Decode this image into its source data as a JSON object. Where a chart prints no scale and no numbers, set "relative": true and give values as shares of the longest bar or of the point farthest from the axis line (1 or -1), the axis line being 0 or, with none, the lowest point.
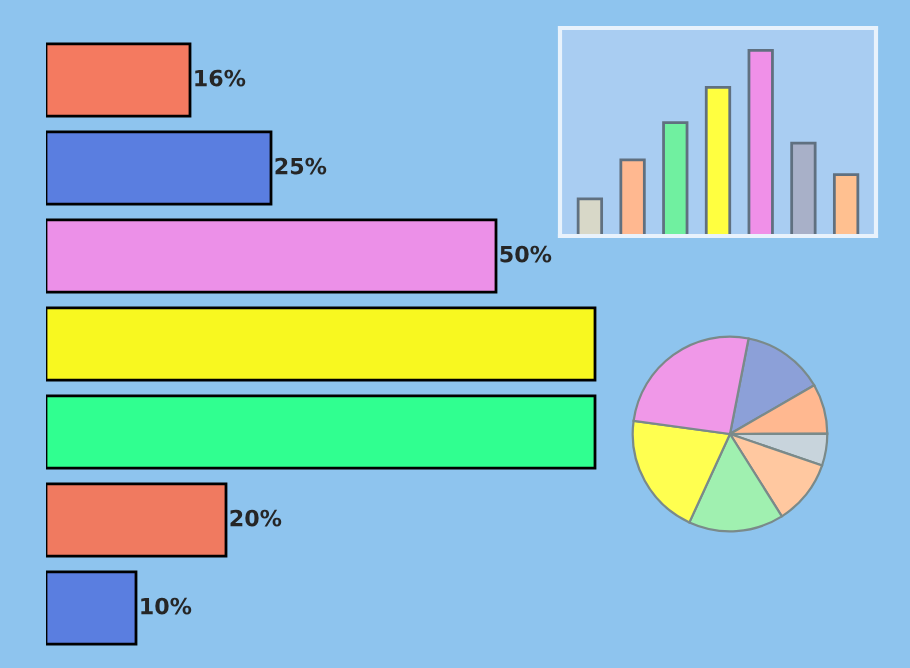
{
  "chart_data": [
    {
      "type": "bar",
      "orientation": "horizontal",
      "categories": [
        null,
        null,
        null,
        null,
        null,
        null,
        null
      ],
      "values": [
        16,
        25,
        50,
        61,
        61,
        20,
        10
      ],
      "colors": [
        "#f47a60",
        "#5a7ee0",
        "#ec90e8",
        "#f8f820",
        "#30ff90",
        "#f07a60",
        "#5a7ee0"
      ],
      "value_labels": [
        "16%",
        "25%",
        "50%",
        null,
        null,
        "20%",
        "10%"
      ],
      "xlim": [
        0,
        96
      ]
    },
    {
      "type": "bar",
      "relative": true,
      "categories": [
        null,
        null,
        null,
        null,
        null,
        null,
        null
      ],
      "values": [
        0.2,
        0.41,
        0.61,
        0.8,
        1,
        0.5,
        0.33
      ],
      "colors": [
        "#d8d8c8",
        "#ffb890",
        "#70f0a0",
        "#ffff40",
        "#f090e8",
        "#a8b0c8",
        "#ffc090"
      ]
    },
    {
      "type": "pie",
      "categories": [
        null,
        null,
        null,
        null,
        null,
        null,
        null
      ],
      "values": [
        13.6,
        8.3,
        5.3,
        10.8,
        15.8,
        20.3,
        25.9
      ],
      "colors": [
        "#8ca0d8",
        "#ffb890",
        "#c8d4dc",
        "#ffc8a0",
        "#a0f0b0",
        "#ffff50",
        "#f098e8"
      ]
    }
  ]
}
